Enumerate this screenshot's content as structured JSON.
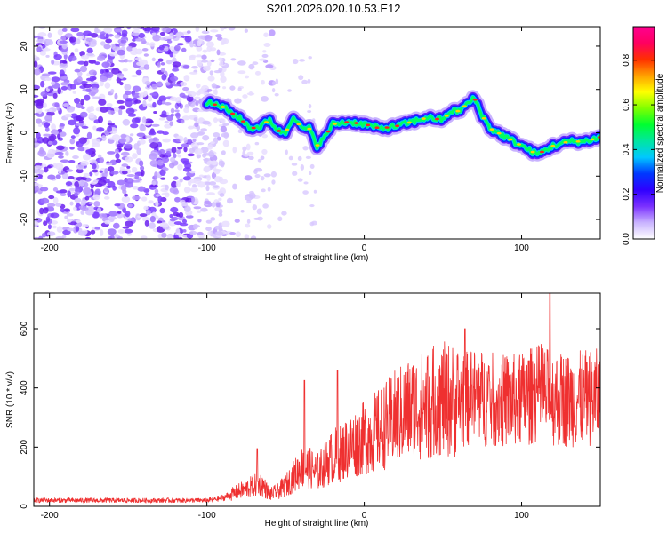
{
  "title": "S201.2026.020.10.53.E12",
  "chart_data": [
    {
      "type": "heatmap",
      "xlabel": "Height of straight line (km)",
      "ylabel": "Frequency (Hz)",
      "xlim": [
        -210,
        150
      ],
      "ylim": [
        -24.5,
        24.5
      ],
      "xticks": [
        -200,
        -100,
        0,
        100
      ],
      "yticks": [
        -20,
        -10,
        0,
        10,
        20
      ],
      "colorbar": {
        "label": "Normalized spectral amplitude",
        "range": [
          0,
          0.95
        ],
        "ticks": [
          0.0,
          0.2,
          0.4,
          0.6,
          0.8
        ],
        "colors": [
          "#ffffff",
          "#c9b3ff",
          "#7a30ff",
          "#2f00ff",
          "#0038ff",
          "#00c8ff",
          "#00e6a0",
          "#00ff30",
          "#80ff00",
          "#ffff00",
          "#ffa000",
          "#ff3000",
          "#ff0060",
          "#ff0090"
        ]
      },
      "ridge": {
        "x": [
          -100,
          -90,
          -82,
          -78,
          -72,
          -66,
          -60,
          -55,
          -50,
          -45,
          -40,
          -35,
          -30,
          -25,
          -20,
          -10,
          0,
          10,
          20,
          30,
          40,
          50,
          55,
          60,
          65,
          70,
          75,
          80,
          85,
          90,
          100,
          110,
          115,
          120,
          130,
          140,
          150
        ],
        "y": [
          7,
          6,
          4,
          3,
          1,
          1.5,
          3,
          0.5,
          0,
          4,
          1,
          1,
          -3,
          -1,
          2,
          2.5,
          2,
          1,
          1.5,
          2.5,
          3.5,
          3,
          5,
          5,
          6.5,
          8,
          4,
          1,
          0,
          -1,
          -3,
          -5,
          -4,
          -3,
          -2,
          -2,
          -1
        ]
      },
      "noise_region": [
        -210,
        -88
      ]
    },
    {
      "type": "line",
      "xlabel": "Height of straight line (km)",
      "ylabel": "SNR (10 * v/v)",
      "xlim": [
        -210,
        150
      ],
      "ylim": [
        0,
        720
      ],
      "xticks": [
        -200,
        -100,
        0,
        100
      ],
      "yticks": [
        0,
        200,
        400,
        600
      ],
      "color": "#ef3030",
      "envelope": {
        "x": [
          -210,
          -100,
          -90,
          -80,
          -75,
          -70,
          -65,
          -60,
          -55,
          -50,
          -45,
          -40,
          -35,
          -30,
          -25,
          -20,
          -15,
          -10,
          0,
          10,
          20,
          30,
          40,
          50,
          60,
          70,
          80,
          90,
          100,
          110,
          120,
          130,
          140,
          150
        ],
        "y": [
          20,
          20,
          28,
          50,
          60,
          70,
          75,
          40,
          50,
          70,
          100,
          130,
          130,
          115,
          140,
          170,
          180,
          200,
          230,
          260,
          300,
          330,
          345,
          360,
          355,
          370,
          360,
          355,
          360,
          380,
          365,
          360,
          365,
          370
        ]
      },
      "spikes": [
        {
          "x": -68,
          "y": 195
        },
        {
          "x": -38,
          "y": 425
        },
        {
          "x": -17,
          "y": 460
        },
        {
          "x": 64,
          "y": 600
        },
        {
          "x": 118,
          "y": 720
        }
      ]
    }
  ]
}
